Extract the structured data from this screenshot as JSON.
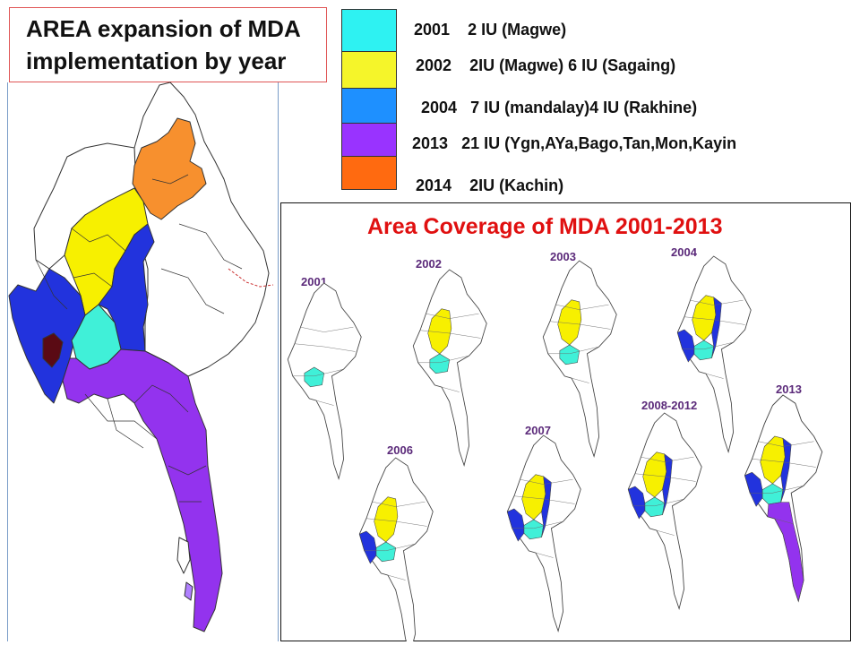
{
  "title": {
    "line1": "AREA expansion of MDA",
    "line2": "implementation  by year"
  },
  "legend": [
    {
      "year": "2001",
      "text": "2 IU (Magwe)",
      "color": "#2ef2f2"
    },
    {
      "year": "2002",
      "text": "2IU (Magwe) 6 IU (Sagaing)",
      "color": "#f5f52a"
    },
    {
      "year": "2004",
      "text": "7 IU (mandalay)4 IU (Rakhine)",
      "color": "#1e90ff"
    },
    {
      "year": "2013",
      "text": "21 IU (Ygn,AYa,Bago,Tan,Mon,Kayin",
      "color": "#9933ff"
    },
    {
      "year": "2014",
      "text": "2IU (Kachin)",
      "color": "#ff6a10"
    }
  ],
  "map_colors": {
    "magwe_2001": "#40f0d8",
    "sagaing_2002": "#f7f000",
    "mandalay_rakhine_2004": "#2233dd",
    "lower_2013": "#9333ee",
    "kachin_2014": "#f7902e",
    "untreated": "#ffffff",
    "delta_dark": "#5a0a14",
    "border": "#333333"
  },
  "inset": {
    "title": "Area Coverage of MDA  2001-2013",
    "years": [
      "2001",
      "2002",
      "2003",
      "2004",
      "2006",
      "2007",
      "2008-2012",
      "2013"
    ]
  }
}
